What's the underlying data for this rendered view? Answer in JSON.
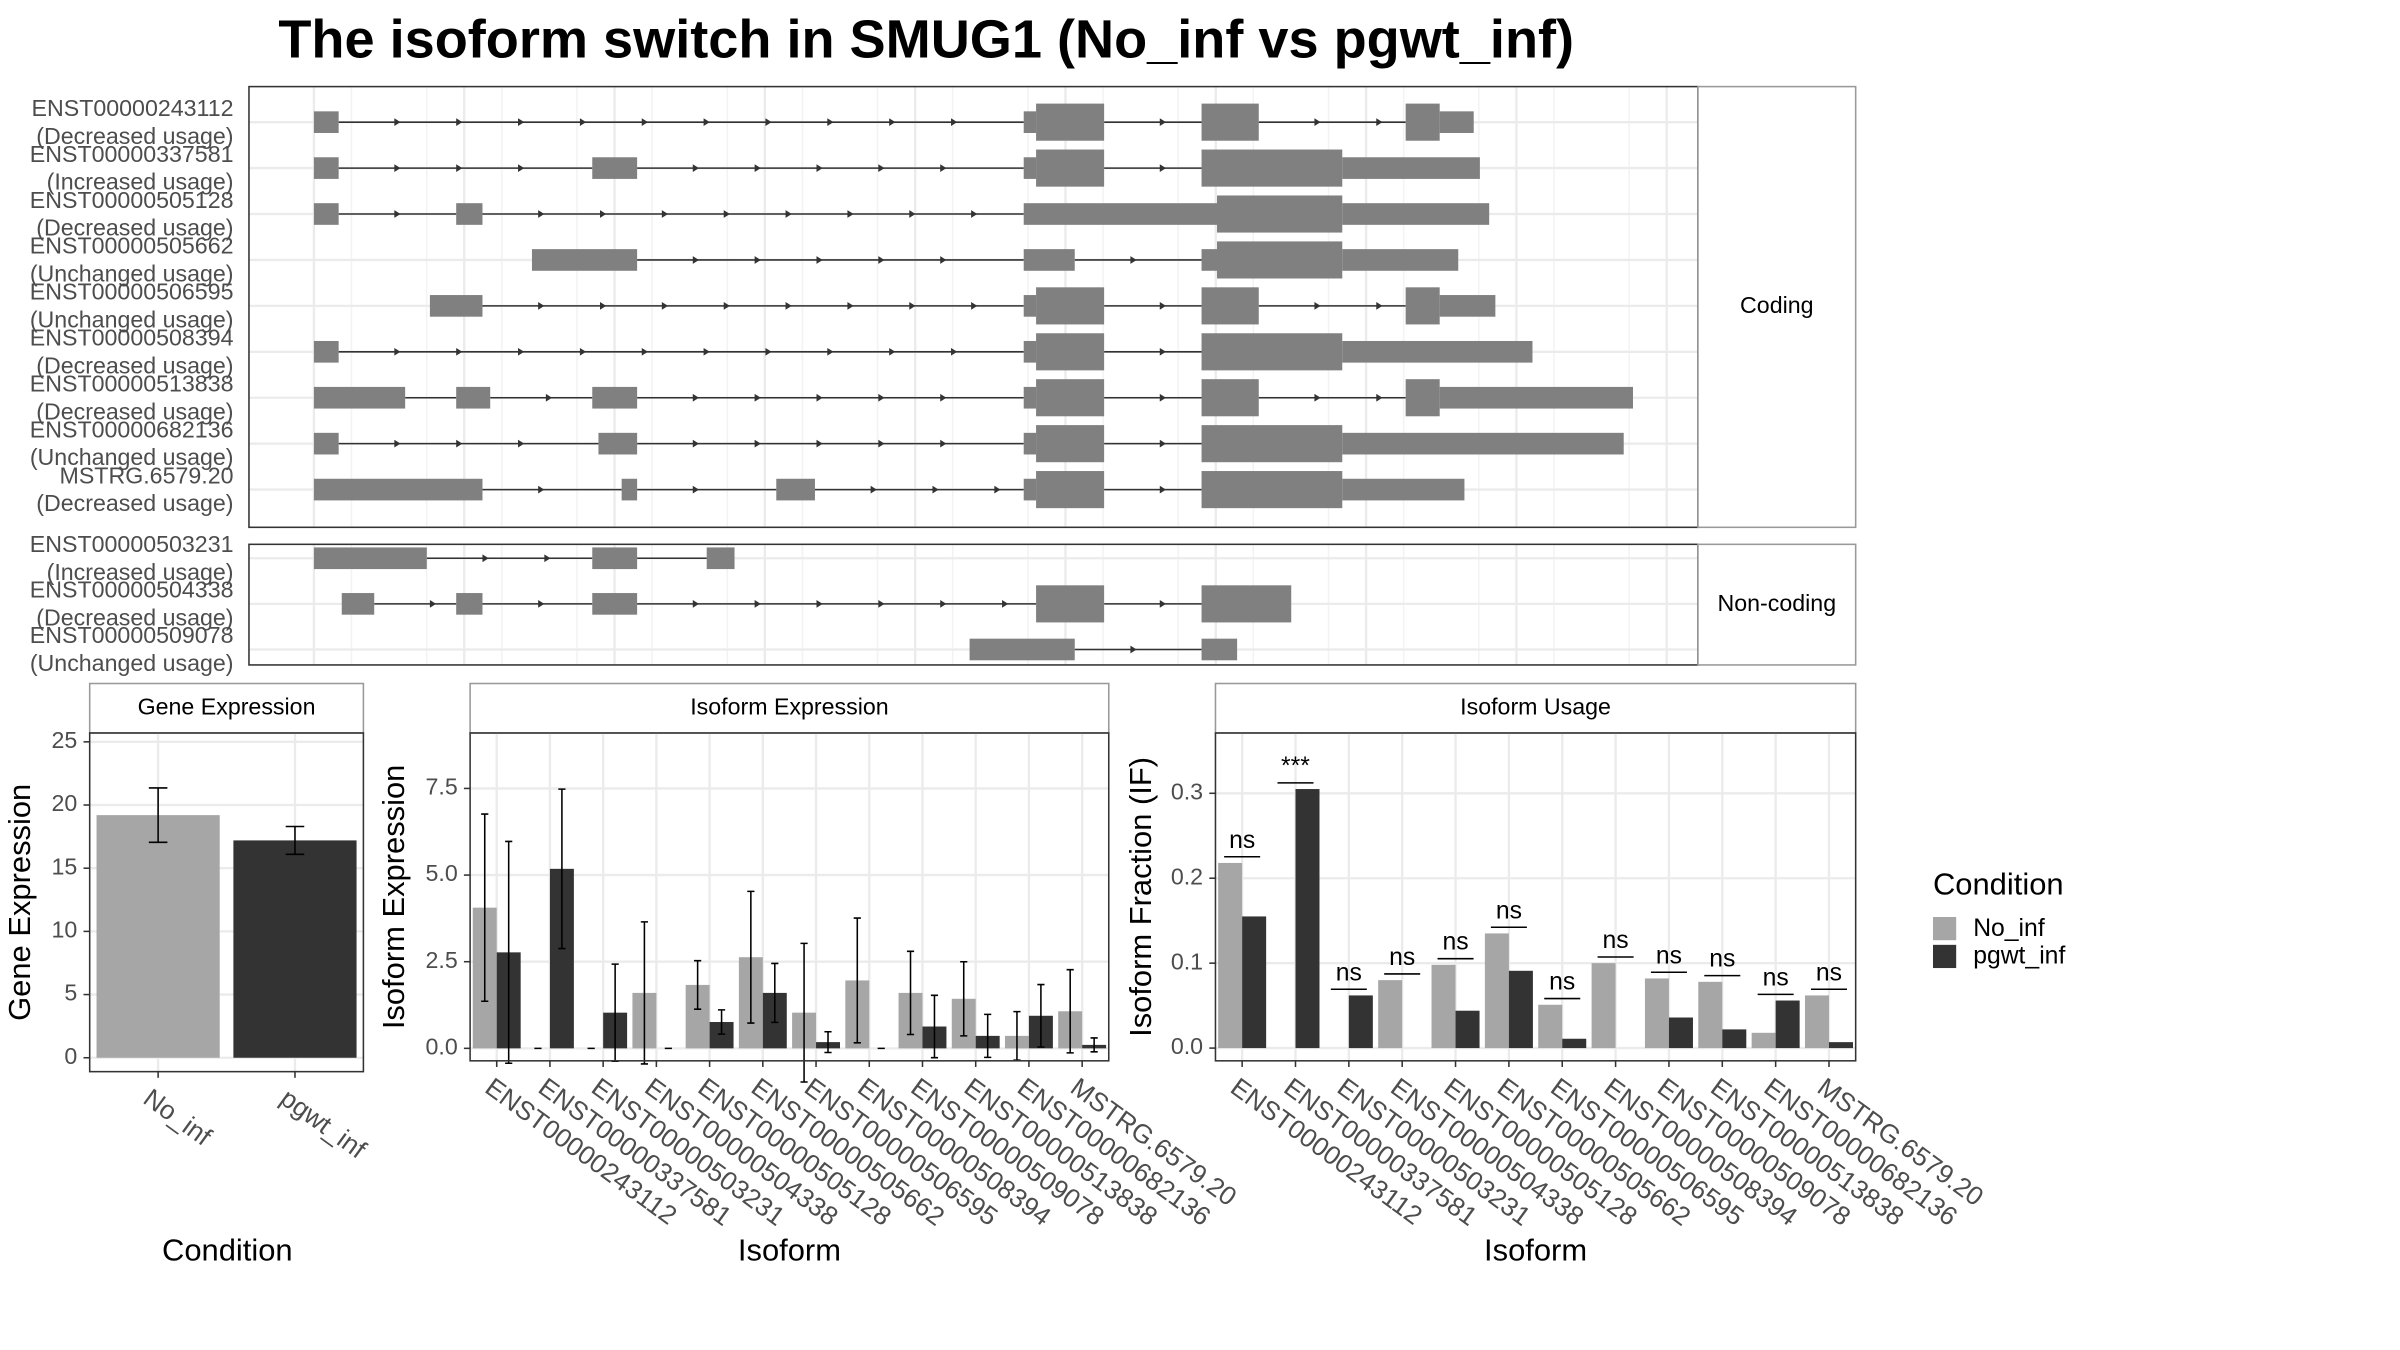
{
  "title": "The isoform switch in SMUG1 (No_inf vs pgwt_inf)",
  "structure": {
    "facets": [
      {
        "label": "Coding",
        "transcripts": [
          {
            "id": "ENST00000243112",
            "usage": "(Decreased usage)"
          },
          {
            "id": "ENST00000337581",
            "usage": "(Increased usage)"
          },
          {
            "id": "ENST00000505128",
            "usage": "(Decreased usage)"
          },
          {
            "id": "ENST00000505662",
            "usage": "(Unchanged usage)"
          },
          {
            "id": "ENST00000506595",
            "usage": "(Unchanged usage)"
          },
          {
            "id": "ENST00000508394",
            "usage": "(Decreased usage)"
          },
          {
            "id": "ENST00000513838",
            "usage": "(Decreased usage)"
          },
          {
            "id": "ENST00000682136",
            "usage": "(Unchanged usage)"
          },
          {
            "id": "MSTRG.6579.20",
            "usage": "(Decreased usage)"
          }
        ]
      },
      {
        "label": "Non-coding",
        "transcripts": [
          {
            "id": "ENST00000503231",
            "usage": "(Increased usage)"
          },
          {
            "id": "ENST00000504338",
            "usage": "(Decreased usage)"
          },
          {
            "id": "ENST00000509078",
            "usage": "(Unchanged usage)"
          }
        ]
      }
    ]
  },
  "legend": {
    "title": "Condition"
  },
  "chart_data": [
    {
      "type": "bar",
      "title": "Gene Expression",
      "x_label": "Condition",
      "y_label": "Gene Expression",
      "categories": [
        "No_inf",
        "pgwt_inf"
      ],
      "values": [
        19.2,
        17.2
      ],
      "errors": [
        2.15,
        1.1
      ],
      "colors": [
        "#a6a6a6",
        "#333333"
      ],
      "ylim": [
        -1.1,
        25.7
      ],
      "yticks": [
        0,
        5,
        10,
        15,
        20,
        25
      ],
      "grid": true
    },
    {
      "type": "bar",
      "title": "Isoform Expression",
      "x_label": "Isoform",
      "y_label": "Isoform Expression",
      "categories": [
        "ENST00000243112",
        "ENST00000337581",
        "ENST00000503231",
        "ENST00000504338",
        "ENST00000505128",
        "ENST00000505662",
        "ENST00000506595",
        "ENST00000508394",
        "ENST00000509078",
        "ENST00000513838",
        "ENST00000682136",
        "MSTRG.6579.20"
      ],
      "series": [
        {
          "name": "No_inf",
          "color": "#a6a6a6",
          "values": [
            4.06,
            0,
            0,
            1.6,
            1.83,
            2.63,
            1.03,
            1.96,
            1.6,
            1.43,
            0.36,
            1.07
          ],
          "errors": [
            2.7,
            0,
            0,
            2.05,
            0.7,
            1.9,
            2.0,
            1.8,
            1.2,
            1.07,
            0.7,
            1.2
          ]
        },
        {
          "name": "pgwt_inf",
          "color": "#333333",
          "values": [
            2.77,
            5.18,
            1.03,
            0,
            0.76,
            1.6,
            0.18,
            0,
            0.63,
            0.36,
            0.94,
            0.1
          ],
          "errors": [
            3.2,
            2.3,
            1.4,
            0,
            0.35,
            0.85,
            0.3,
            0,
            0.9,
            0.62,
            0.9,
            0.2
          ]
        }
      ],
      "ylim": [
        -0.36,
        9.1
      ],
      "yticks": [
        {
          "value": 0,
          "label": "0.0"
        },
        2.5,
        {
          "value": 5,
          "label": "5.0"
        },
        7.5
      ],
      "grid": true
    },
    {
      "type": "bar",
      "title": "Isoform Usage",
      "x_label": "Isoform",
      "y_label": "Isoform Fraction (IF)",
      "categories": [
        "ENST00000243112",
        "ENST00000337581",
        "ENST00000503231",
        "ENST00000504338",
        "ENST00000505128",
        "ENST00000505662",
        "ENST00000506595",
        "ENST00000508394",
        "ENST00000509078",
        "ENST00000513838",
        "ENST00000682136",
        "MSTRG.6579.20"
      ],
      "series": [
        {
          "name": "No_inf",
          "color": "#a6a6a6",
          "values": [
            0.218,
            0,
            0,
            0.08,
            0.098,
            0.135,
            0.051,
            0.1,
            0.082,
            0.078,
            0.018,
            0.062
          ]
        },
        {
          "name": "pgwt_inf",
          "color": "#333333",
          "values": [
            0.155,
            0.305,
            0.062,
            0,
            0.044,
            0.091,
            0.011,
            0,
            0.036,
            0.022,
            0.056,
            0.007
          ]
        }
      ],
      "annotations": [
        "ns",
        "***",
        "ns",
        "ns",
        "ns",
        "ns",
        "ns",
        "ns",
        "ns",
        "ns",
        "ns",
        "ns"
      ],
      "ylim": [
        -0.015,
        0.371
      ],
      "yticks": [
        {
          "value": 0,
          "label": "0.0"
        },
        0.1,
        0.2,
        0.3
      ],
      "grid": true
    }
  ]
}
